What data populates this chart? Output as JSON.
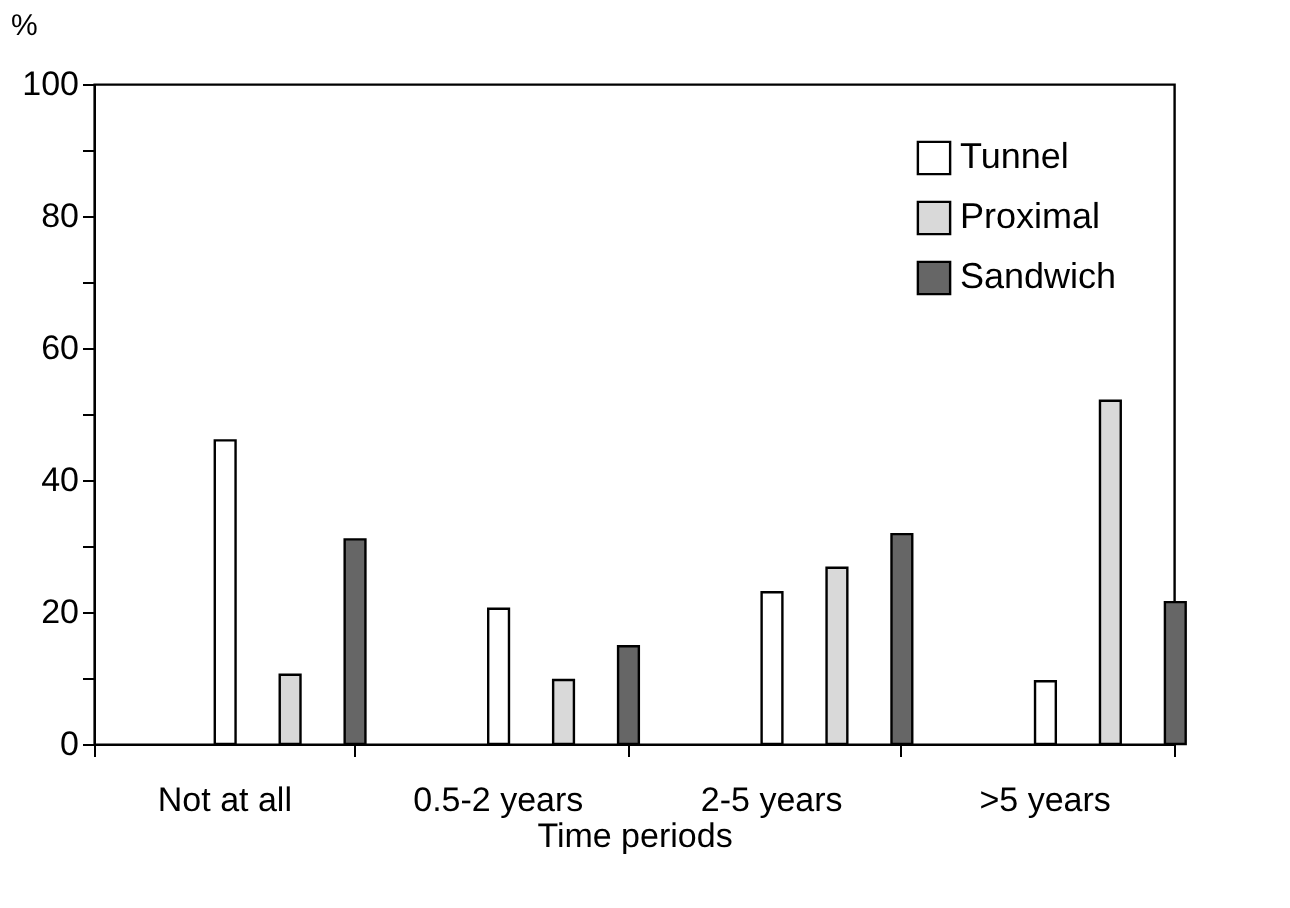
{
  "chart_data": {
    "type": "bar",
    "xlabel": "Time periods",
    "ylabel": "%",
    "categories": [
      "Not at all",
      "0.5-2 years",
      "2-5 years",
      ">5 years"
    ],
    "series": [
      {
        "name": "Tunnel",
        "color": "#ffffff",
        "values": [
          46,
          20.5,
          23,
          9.5
        ]
      },
      {
        "name": "Proximal",
        "color": "#d9d9d9",
        "values": [
          10.5,
          9.7,
          26.7,
          52
        ]
      },
      {
        "name": "Sandwich",
        "color": "#666666",
        "values": [
          31,
          14.8,
          31.8,
          21.5
        ]
      }
    ],
    "ylim": [
      0,
      100
    ],
    "yticks": [
      0,
      {
        "value": 10,
        "label": null
      },
      20,
      {
        "value": 30,
        "label": null
      },
      40,
      {
        "value": 50,
        "label": null
      },
      60,
      {
        "value": 70,
        "label": null
      },
      80,
      {
        "value": 90,
        "label": null
      },
      100
    ],
    "grid": false,
    "legend": "top right"
  }
}
